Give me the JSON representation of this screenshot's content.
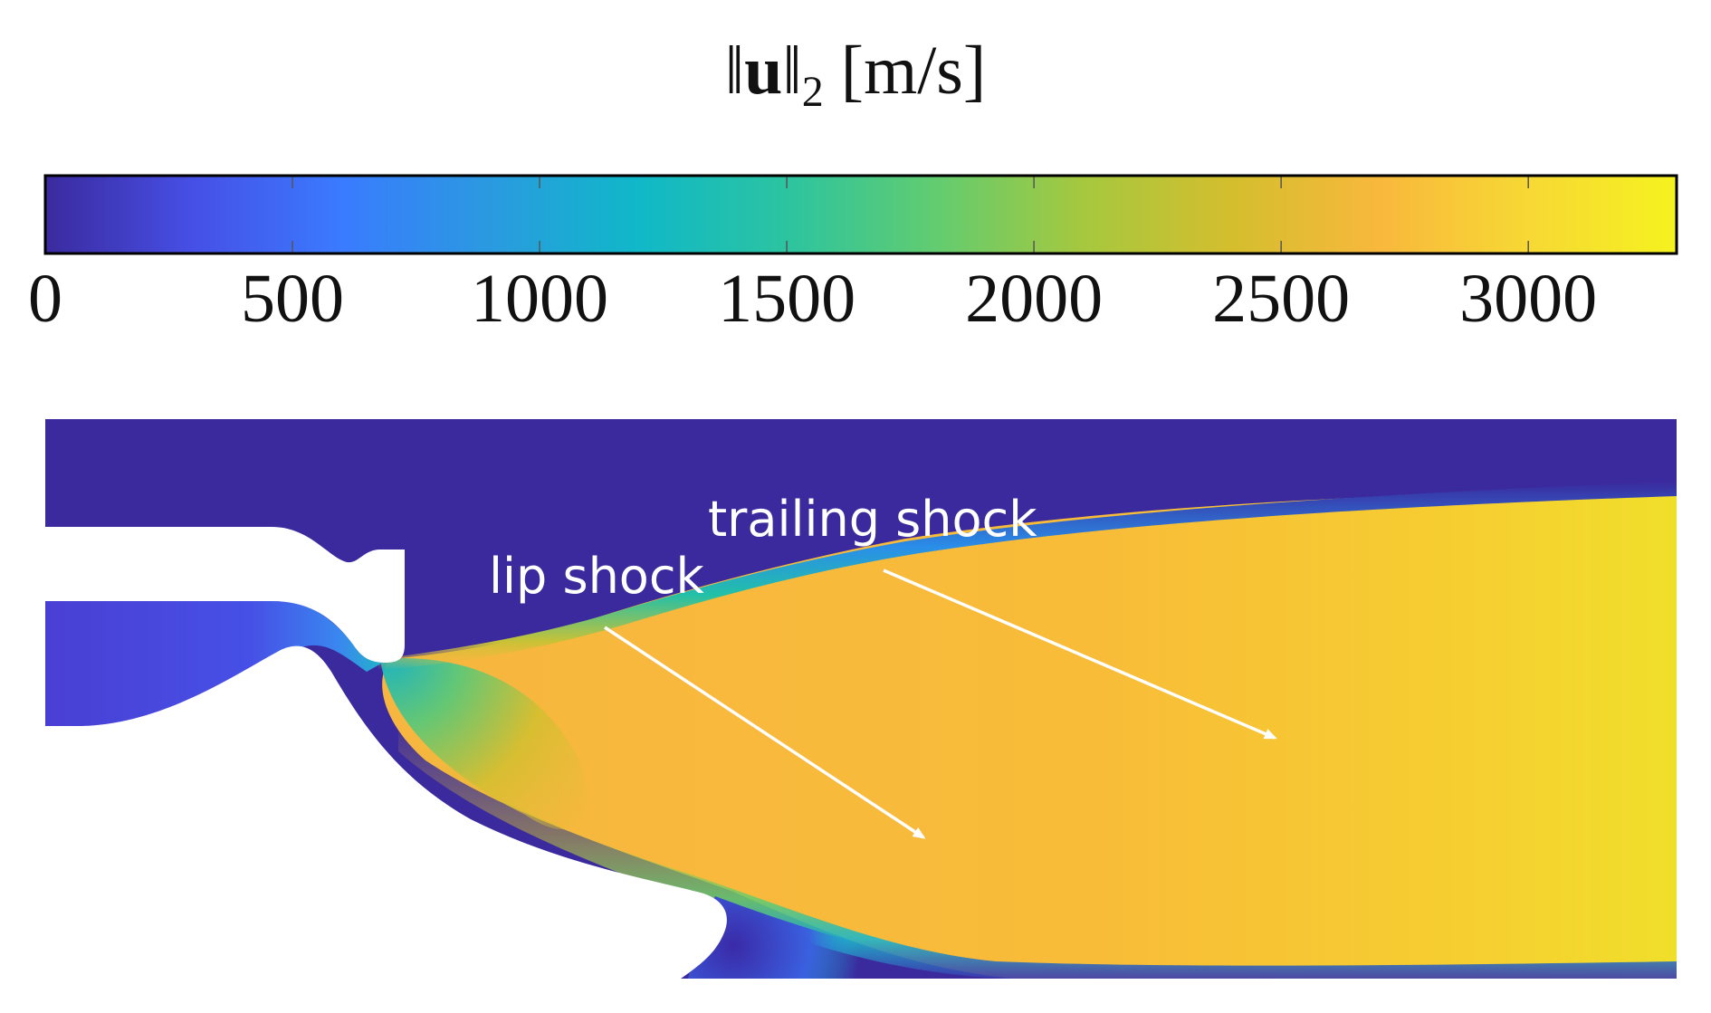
{
  "colorbar": {
    "title_prefix": "‖",
    "title_var": "u",
    "title_suffix": "‖",
    "title_sub": "2",
    "title_unit": " [m/s]",
    "range": [
      0,
      3300
    ],
    "ticks": [
      {
        "value": 0,
        "label": "0"
      },
      {
        "value": 500,
        "label": "500"
      },
      {
        "value": 1000,
        "label": "1000"
      },
      {
        "value": 1500,
        "label": "1500"
      },
      {
        "value": 2000,
        "label": "2000"
      },
      {
        "value": 2500,
        "label": "2500"
      },
      {
        "value": 3000,
        "label": "3000"
      }
    ],
    "colormap": [
      "#3b2a9e",
      "#4650e6",
      "#3a7bff",
      "#2a9ae0",
      "#10b8c8",
      "#2cc4a0",
      "#62cc70",
      "#a6c83e",
      "#d4be2e",
      "#f8b83c",
      "#f7d834",
      "#f5f21f"
    ]
  },
  "annotations": {
    "lip_shock": "lip shock",
    "trailing_shock": "trailing shock"
  },
  "colors": {
    "ambient": "#3a2a9e",
    "plume": "#f8ba3a",
    "plume_far": "#f4dc30",
    "arrow": "#ffffff"
  }
}
